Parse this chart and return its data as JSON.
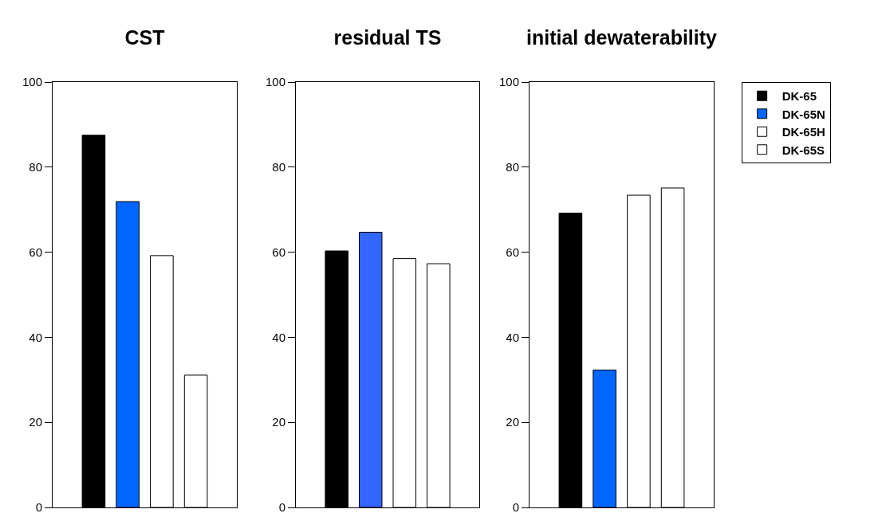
{
  "chart_data": [
    {
      "type": "bar",
      "title": "CST",
      "categories": [
        null
      ],
      "series": [
        {
          "color": "#000000",
          "values": [
            87.5
          ]
        },
        {
          "color": "#0066ff",
          "values": [
            71.9
          ]
        },
        {
          "color": "#ffffff",
          "values": [
            59.2
          ]
        },
        {
          "color": "#ffffff",
          "values": [
            31.1
          ]
        }
      ],
      "ylim": [
        0,
        100
      ],
      "yticks": [
        0,
        20,
        40,
        60,
        80,
        100
      ],
      "grid": false,
      "legend": false
    },
    {
      "type": "bar",
      "title": "residual TS",
      "categories": [
        null
      ],
      "series": [
        {
          "color": "#000000",
          "values": [
            60.3
          ]
        },
        {
          "color": "#3366ff",
          "values": [
            64.7
          ]
        },
        {
          "color": "#ffffff",
          "values": [
            58.5
          ]
        },
        {
          "color": "#ffffff",
          "values": [
            57.3
          ]
        }
      ],
      "ylim": [
        0,
        100
      ],
      "yticks": [
        0,
        20,
        40,
        60,
        80,
        100
      ],
      "grid": false,
      "legend": false
    },
    {
      "type": "bar",
      "title": "initial dewaterability",
      "categories": [
        null
      ],
      "series": [
        {
          "name": "DK-65",
          "color": "#000000",
          "values": [
            69.2
          ]
        },
        {
          "name": "DK-65N",
          "color": "#0066ff",
          "values": [
            32.3
          ]
        },
        {
          "name": "DK-65H",
          "color": "#ffffff",
          "values": [
            73.4
          ]
        },
        {
          "name": "DK-65S",
          "color": "#ffffff",
          "values": [
            75.1
          ]
        }
      ],
      "ylim": [
        0,
        100
      ],
      "yticks": [
        0,
        20,
        40,
        60,
        80,
        100
      ],
      "grid": false,
      "legend": "right"
    }
  ]
}
